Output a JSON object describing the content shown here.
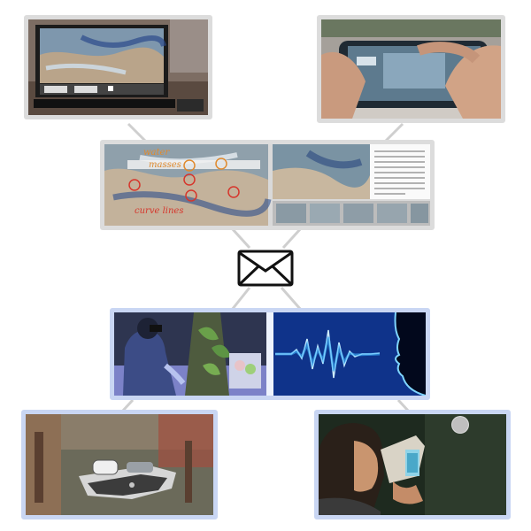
{
  "colors": {
    "frame_gray": "#dcdcdc",
    "frame_blue": "#c9d6f3",
    "connector": "#cfcfcf",
    "annotation_red": "#d6362c",
    "annotation_orange": "#e08a2e"
  },
  "panels": [
    {
      "id": "laptop-display",
      "icon": "laptop-photo"
    },
    {
      "id": "phone-in-hands",
      "icon": "phone-photo"
    },
    {
      "id": "annotated-map-screens",
      "icon": "annotated-map-photo",
      "annotations": [
        "water",
        "masses",
        "curve lines"
      ]
    },
    {
      "id": "vr-user-scene",
      "icon": "vr-user-photo"
    },
    {
      "id": "voice-waveform",
      "icon": "voice-waveform-photo"
    },
    {
      "id": "ar-terrain-model",
      "icon": "ar-terrain-photo"
    },
    {
      "id": "cardboard-viewer-user",
      "icon": "cardboard-viewer-photo"
    }
  ],
  "center_icon": "envelope-icon"
}
